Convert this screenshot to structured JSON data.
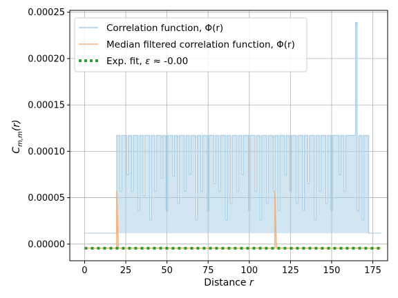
{
  "chart_data": {
    "type": "line",
    "title": "",
    "xlabel": "Distance",
    "xlabel_var": "r",
    "ylabel": "C",
    "ylabel_sub": "m,m",
    "ylabel_arg": "(r)",
    "xlim": [
      -9,
      184
    ],
    "ylim": [
      -1.8e-05,
      0.000252
    ],
    "x_ticks": [
      0,
      25,
      50,
      75,
      100,
      125,
      150,
      175
    ],
    "x_tick_labels": [
      "0",
      "25",
      "50",
      "75",
      "100",
      "125",
      "150",
      "175"
    ],
    "y_ticks": [
      0,
      5e-05,
      0.0001,
      0.00015,
      0.0002,
      0.00025
    ],
    "y_tick_labels": [
      "0.00000",
      "0.00005",
      "0.00010",
      "0.00015",
      "0.00020",
      "0.00025"
    ],
    "grid": true,
    "legend_position": "top-left",
    "series": [
      {
        "name": "Correlation function, Φ(r)",
        "color": "#a6cde4",
        "style": "solid-translucent",
        "baseline": 1.17e-05,
        "plateau_value": 0.0001171,
        "plateau_range": [
          20,
          172
        ],
        "dip_values": [
          [
            22,
            5.7e-05
          ],
          [
            26,
            7.5e-05
          ],
          [
            29,
            5.7e-05
          ],
          [
            33,
            3.6e-05
          ],
          [
            36,
            5.2e-05
          ],
          [
            40,
            2.6e-05
          ],
          [
            43,
            5.7e-05
          ],
          [
            47,
            7.1e-05
          ],
          [
            50,
            3.6e-05
          ],
          [
            54,
            7.3e-05
          ],
          [
            57,
            4.4e-05
          ],
          [
            61,
            5.7e-05
          ],
          [
            64,
            7.5e-05
          ],
          [
            68,
            2.6e-05
          ],
          [
            71,
            5.7e-05
          ],
          [
            75,
            3.6e-05
          ],
          [
            79,
            6.5e-05
          ],
          [
            82,
            5.7e-05
          ],
          [
            86,
            2.6e-05
          ],
          [
            89,
            4.4e-05
          ],
          [
            93,
            5.7e-05
          ],
          [
            96,
            7.5e-05
          ],
          [
            100,
            3.6e-05
          ],
          [
            104,
            5.7e-05
          ],
          [
            107,
            2.6e-05
          ],
          [
            111,
            4.4e-05
          ],
          [
            115,
            5.7e-05
          ],
          [
            118,
            3.6e-05
          ],
          [
            122,
            7.5e-05
          ],
          [
            125,
            5.7e-05
          ],
          [
            129,
            4.4e-05
          ],
          [
            133,
            3.6e-05
          ],
          [
            136,
            6.5e-05
          ],
          [
            140,
            2.6e-05
          ],
          [
            143,
            5.7e-05
          ],
          [
            147,
            4.4e-05
          ],
          [
            150,
            3.6e-05
          ],
          [
            155,
            7.5e-05
          ],
          [
            158,
            5.7e-05
          ],
          [
            166,
            3.6e-05
          ],
          [
            169,
            2.6e-05
          ]
        ],
        "spike": {
          "x": 165,
          "value": 0.000239
        }
      },
      {
        "name": "Median filtered correlation function, Φ(r)",
        "color": "#f4b27a",
        "style": "solid",
        "baseline": -4.5e-06,
        "spikes": [
          {
            "x": 20,
            "value": 5.7e-05
          },
          {
            "x": 116,
            "value": 5.7e-05
          }
        ],
        "x_range": [
          0,
          180
        ]
      },
      {
        "name": "Exp. fit, ε ≈ -0.00",
        "legend_prefix": "Exp. fit, ",
        "legend_symbol": "ε",
        "legend_suffix": " ≈ -0.00",
        "color": "#2ca02c",
        "style": "dotted",
        "value": -4.5e-06,
        "x_range": [
          0,
          180
        ]
      }
    ]
  }
}
